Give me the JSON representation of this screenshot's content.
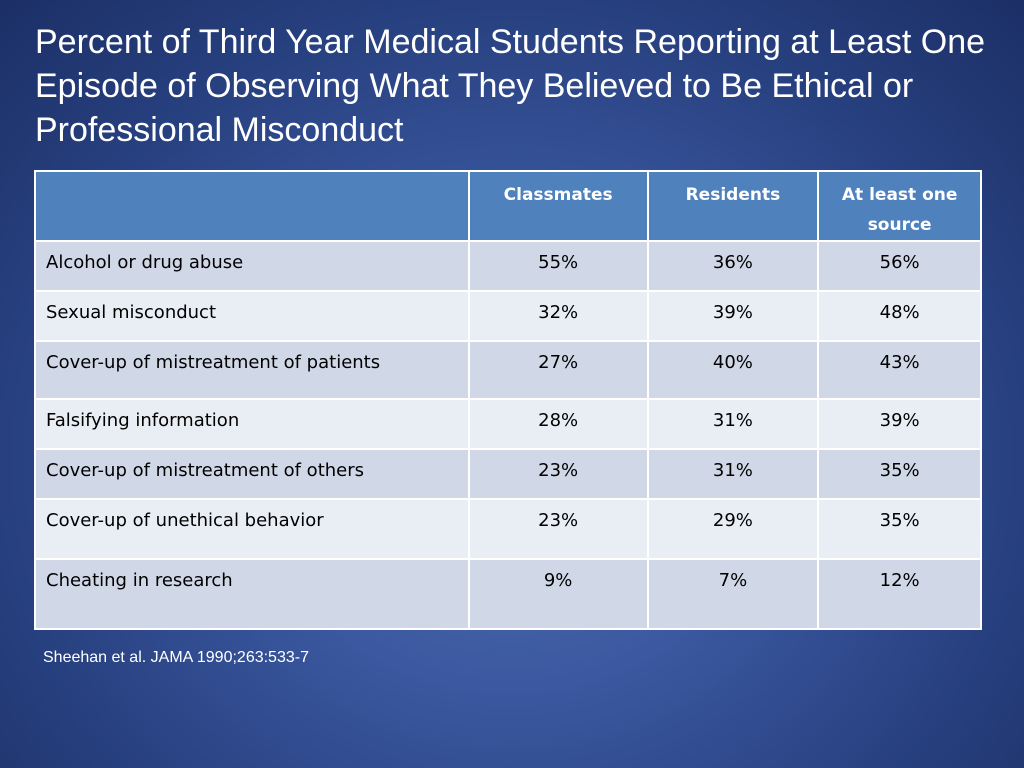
{
  "slide": {
    "title": "Percent of Third Year Medical Students Reporting at Least One Episode of Observing What They Believed to Be Ethical or Professional Misconduct",
    "citation": "Sheehan et al. JAMA 1990;263:533-7"
  },
  "table": {
    "headers": [
      "",
      "Classmates",
      "Residents",
      "At least one source"
    ],
    "rows": [
      {
        "label": "Alcohol or drug abuse",
        "classmates": "55%",
        "residents": "36%",
        "any": "56%"
      },
      {
        "label": "Sexual misconduct",
        "classmates": "32%",
        "residents": "39%",
        "any": "48%"
      },
      {
        "label": "Cover-up of mistreatment of patients",
        "classmates": "27%",
        "residents": "40%",
        "any": "43%"
      },
      {
        "label": "Falsifying information",
        "classmates": "28%",
        "residents": "31%",
        "any": "39%"
      },
      {
        "label": "Cover-up of mistreatment of others",
        "classmates": "23%",
        "residents": "31%",
        "any": "35%"
      },
      {
        "label": "Cover-up of unethical behavior",
        "classmates": "23%",
        "residents": "29%",
        "any": "35%"
      },
      {
        "label": "Cheating in research",
        "classmates": "9%",
        "residents": "7%",
        "any": "12%"
      }
    ]
  }
}
